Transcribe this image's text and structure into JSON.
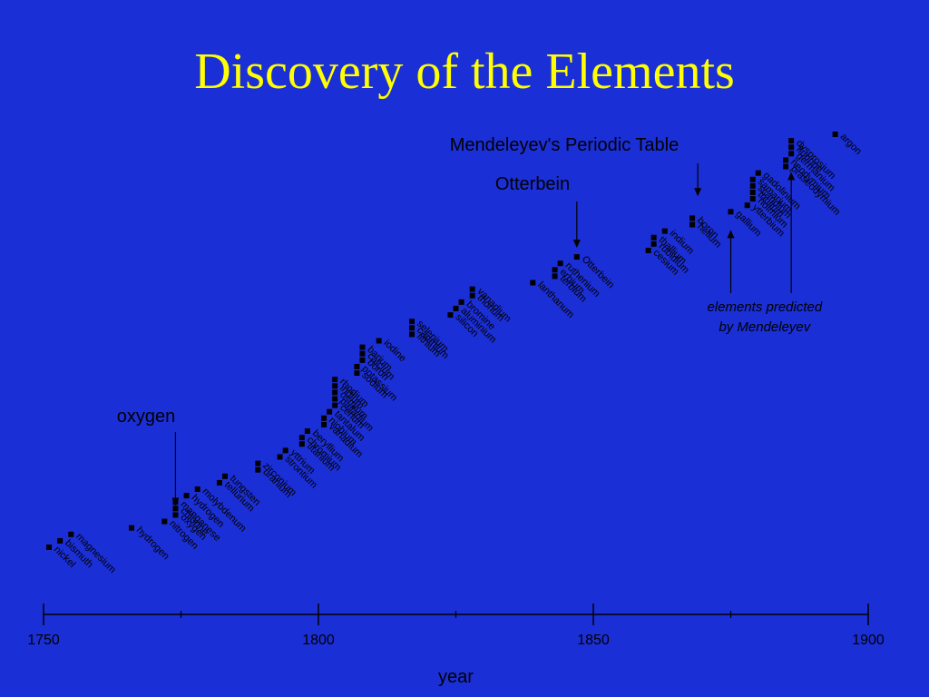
{
  "title": "Discovery of the Elements",
  "chart_data": {
    "type": "scatter",
    "title": "Discovery of the Elements",
    "xlabel": "year",
    "ylabel": "",
    "xlim": [
      1750,
      1900
    ],
    "ylim": [
      0,
      73
    ],
    "xticks": [
      1750,
      1800,
      1850,
      1900
    ],
    "minor_ticks": [
      1775,
      1825,
      1875
    ],
    "grid": false,
    "points": [
      {
        "name": "nickel",
        "year": 1751,
        "rank": 1
      },
      {
        "name": "bismuth",
        "year": 1753,
        "rank": 2
      },
      {
        "name": "magnesium",
        "year": 1755,
        "rank": 3
      },
      {
        "name": "hydrogen",
        "year": 1766,
        "rank": 4
      },
      {
        "name": "nitrogen",
        "year": 1772,
        "rank": 5
      },
      {
        "name": "oxygen",
        "year": 1774,
        "rank": 6
      },
      {
        "name": "chlorine",
        "year": 1774,
        "rank": 7
      },
      {
        "name": "manganese",
        "year": 1774,
        "rank": 8
      },
      {
        "name": "hydrogen",
        "year": 1776,
        "rank": 9
      },
      {
        "name": "molybdenum",
        "year": 1778,
        "rank": 10
      },
      {
        "name": "tellurium",
        "year": 1782,
        "rank": 11
      },
      {
        "name": "tungsten",
        "year": 1783,
        "rank": 12
      },
      {
        "name": "uranium",
        "year": 1789,
        "rank": 13
      },
      {
        "name": "zirconium",
        "year": 1789,
        "rank": 14
      },
      {
        "name": "strontium",
        "year": 1793,
        "rank": 15
      },
      {
        "name": "yttrium",
        "year": 1794,
        "rank": 16
      },
      {
        "name": "titanium",
        "year": 1797,
        "rank": 17
      },
      {
        "name": "chromium",
        "year": 1797,
        "rank": 18
      },
      {
        "name": "beryllium",
        "year": 1798,
        "rank": 19
      },
      {
        "name": "vanadium",
        "year": 1801,
        "rank": 20
      },
      {
        "name": "niobium",
        "year": 1801,
        "rank": 21
      },
      {
        "name": "tantalum",
        "year": 1802,
        "rank": 22
      },
      {
        "name": "cerium",
        "year": 1803,
        "rank": 23
      },
      {
        "name": "palladium",
        "year": 1803,
        "rank": 24
      },
      {
        "name": "osmium",
        "year": 1803,
        "rank": 25
      },
      {
        "name": "iridium",
        "year": 1803,
        "rank": 26
      },
      {
        "name": "rhodium",
        "year": 1803,
        "rank": 27
      },
      {
        "name": "sodium",
        "year": 1807,
        "rank": 28
      },
      {
        "name": "potassium",
        "year": 1807,
        "rank": 29
      },
      {
        "name": "boron",
        "year": 1808,
        "rank": 30
      },
      {
        "name": "calcium",
        "year": 1808,
        "rank": 31
      },
      {
        "name": "barium",
        "year": 1808,
        "rank": 32
      },
      {
        "name": "iodine",
        "year": 1811,
        "rank": 33
      },
      {
        "name": "lithium",
        "year": 1817,
        "rank": 34
      },
      {
        "name": "cadmium",
        "year": 1817,
        "rank": 35
      },
      {
        "name": "selenium",
        "year": 1817,
        "rank": 36
      },
      {
        "name": "silicon",
        "year": 1824,
        "rank": 37
      },
      {
        "name": "aluminium",
        "year": 1825,
        "rank": 38
      },
      {
        "name": "bromine",
        "year": 1826,
        "rank": 39
      },
      {
        "name": "thorium",
        "year": 1828,
        "rank": 40
      },
      {
        "name": "vanadium",
        "year": 1828,
        "rank": 41
      },
      {
        "name": "lanthanum",
        "year": 1839,
        "rank": 42
      },
      {
        "name": "terbium",
        "year": 1843,
        "rank": 43
      },
      {
        "name": "erbium",
        "year": 1843,
        "rank": 44
      },
      {
        "name": "ruthenium",
        "year": 1844,
        "rank": 45
      },
      {
        "name": "Otterbein",
        "year": 1847,
        "rank": 46
      },
      {
        "name": "cesium",
        "year": 1860,
        "rank": 47
      },
      {
        "name": "rubidium",
        "year": 1861,
        "rank": 48
      },
      {
        "name": "thallium",
        "year": 1861,
        "rank": 49
      },
      {
        "name": "indium",
        "year": 1863,
        "rank": 50
      },
      {
        "name": "helium",
        "year": 1868,
        "rank": 51
      },
      {
        "name": "boron",
        "year": 1868,
        "rank": 52
      },
      {
        "name": "gallium",
        "year": 1875,
        "rank": 53
      },
      {
        "name": "ytterbium",
        "year": 1878,
        "rank": 54
      },
      {
        "name": "holmium",
        "year": 1879,
        "rank": 55
      },
      {
        "name": "thulium",
        "year": 1879,
        "rank": 56
      },
      {
        "name": "scandium",
        "year": 1879,
        "rank": 57
      },
      {
        "name": "samarium",
        "year": 1879,
        "rank": 58
      },
      {
        "name": "gadolinium",
        "year": 1880,
        "rank": 59
      },
      {
        "name": "praseodymium",
        "year": 1885,
        "rank": 60
      },
      {
        "name": "neodymium",
        "year": 1885,
        "rank": 61
      },
      {
        "name": "germanium",
        "year": 1886,
        "rank": 62
      },
      {
        "name": "fluorine",
        "year": 1886,
        "rank": 63
      },
      {
        "name": "dysprosium",
        "year": 1886,
        "rank": 64
      },
      {
        "name": "argon",
        "year": 1894,
        "rank": 65
      }
    ],
    "annotations": [
      {
        "text": "oxygen",
        "target_year": 1774,
        "target_rank": 6
      },
      {
        "text": "Otterbein",
        "target_year": 1847,
        "target_rank": 46
      },
      {
        "text": "Mendeleyev's Periodic Table",
        "target_year": 1869,
        "target_rank": 54
      },
      {
        "text": "elements predicted",
        "text2": "by Mendeleyev",
        "targets": [
          {
            "year": 1875,
            "rank": 53
          },
          {
            "year": 1886,
            "rank": 62
          }
        ]
      }
    ]
  }
}
